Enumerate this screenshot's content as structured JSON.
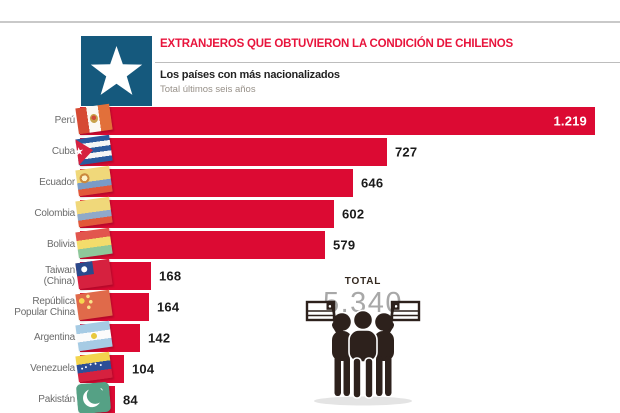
{
  "header": {
    "title": "EXTRANJEROS QUE OBTUVIERON LA CONDICIÓN DE CHILENOS",
    "subtitle": "Los países con más nacionalizados",
    "period": "Total últimos seis años"
  },
  "chart_data": {
    "type": "bar",
    "orientation": "horizontal",
    "title": "Los países con más nacionalizados",
    "subtitle": "Total últimos seis años",
    "xlim": [
      0,
      1250
    ],
    "grid": false,
    "legend": false,
    "categories": [
      "Perú",
      "Cuba",
      "Ecuador",
      "Colombia",
      "Bolivia",
      "Taiwan (China)",
      "República Popular China",
      "Argentina",
      "Venezuela",
      "Pakistán"
    ],
    "values": [
      1219,
      727,
      646,
      602,
      579,
      168,
      164,
      142,
      104,
      84
    ],
    "rows": [
      {
        "country": "Perú",
        "label_lines": [
          "Perú"
        ],
        "value": 1219,
        "value_text": "1.219",
        "flag": "peru",
        "value_inside": true
      },
      {
        "country": "Cuba",
        "label_lines": [
          "Cuba"
        ],
        "value": 727,
        "value_text": "727",
        "flag": "cuba",
        "value_inside": false
      },
      {
        "country": "Ecuador",
        "label_lines": [
          "Ecuador"
        ],
        "value": 646,
        "value_text": "646",
        "flag": "ecuador",
        "value_inside": false
      },
      {
        "country": "Colombia",
        "label_lines": [
          "Colombia"
        ],
        "value": 602,
        "value_text": "602",
        "flag": "colombia",
        "value_inside": false
      },
      {
        "country": "Bolivia",
        "label_lines": [
          "Bolivia"
        ],
        "value": 579,
        "value_text": "579",
        "flag": "bolivia",
        "value_inside": false
      },
      {
        "country": "Taiwan (China)",
        "label_lines": [
          "Taiwan",
          "(China)"
        ],
        "value": 168,
        "value_text": "168",
        "flag": "taiwan",
        "value_inside": false
      },
      {
        "country": "República Popular China",
        "label_lines": [
          "República",
          "Popular China"
        ],
        "value": 164,
        "value_text": "164",
        "flag": "china",
        "value_inside": false
      },
      {
        "country": "Argentina",
        "label_lines": [
          "Argentina"
        ],
        "value": 142,
        "value_text": "142",
        "flag": "argentina",
        "value_inside": false
      },
      {
        "country": "Venezuela",
        "label_lines": [
          "Venezuela"
        ],
        "value": 104,
        "value_text": "104",
        "flag": "venezuela",
        "value_inside": false
      },
      {
        "country": "Pakistán",
        "label_lines": [
          "Pakistán"
        ],
        "value": 84,
        "value_text": "84",
        "flag": "pakistan",
        "value_inside": false
      }
    ]
  },
  "total": {
    "label": "TOTAL",
    "value": "5.340"
  },
  "icons": {
    "logo": "chile-star-logo",
    "pictogram": "people-holding-chilean-flags"
  },
  "colors": {
    "bar": "#dc0a33",
    "title_red": "#e8143c",
    "logo_blue": "#15597d",
    "figure_dark": "#2d211c",
    "label_gray": "#6b6b6b",
    "rule_gray": "#c9c9c9"
  }
}
